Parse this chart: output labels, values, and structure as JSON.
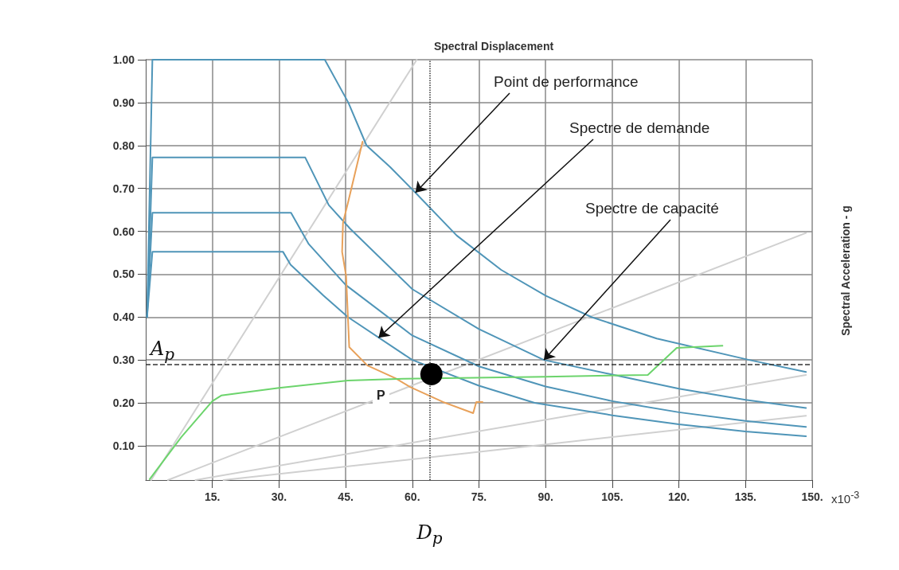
{
  "chart_data": {
    "type": "line",
    "title": "Spectral Displacement",
    "ylabel": "Spectral Acceleration - g",
    "xlim": [
      0,
      150
    ],
    "ylim": [
      0.02,
      1.0
    ],
    "xticks": [
      {
        "value": 15,
        "label": "15."
      },
      {
        "value": 30,
        "label": "30."
      },
      {
        "value": 45,
        "label": "45."
      },
      {
        "value": 60,
        "label": "60."
      },
      {
        "value": 75,
        "label": "75."
      },
      {
        "value": 90,
        "label": "90."
      },
      {
        "value": 105,
        "label": "105."
      },
      {
        "value": 120,
        "label": "120."
      },
      {
        "value": 135,
        "label": "135."
      },
      {
        "value": 150,
        "label": "150."
      }
    ],
    "yticks": [
      {
        "value": 0.1,
        "label": "0.10"
      },
      {
        "value": 0.2,
        "label": "0.20"
      },
      {
        "value": 0.3,
        "label": "0.30"
      },
      {
        "value": 0.4,
        "label": "0.40"
      },
      {
        "value": 0.5,
        "label": "0.50"
      },
      {
        "value": 0.6,
        "label": "0.60"
      },
      {
        "value": 0.7,
        "label": "0.70"
      },
      {
        "value": 0.8,
        "label": "0.80"
      },
      {
        "value": 0.9,
        "label": "0.90"
      },
      {
        "value": 1.0,
        "label": "1.00"
      }
    ],
    "grid": true,
    "marker": "none",
    "series": [
      {
        "color": "#d0d0d0",
        "x": [
          1.22,
          61
        ],
        "values": [
          0.02,
          1.0
        ]
      },
      {
        "color": "#d0d0d0",
        "x": [
          4.99,
          148.6
        ],
        "values": [
          0.02,
          0.596
        ]
      },
      {
        "color": "#d0d0d0",
        "x": [
          11.2,
          148.6
        ],
        "values": [
          0.02,
          0.265
        ]
      },
      {
        "color": "#d0d0d0",
        "x": [
          17.5,
          148.6
        ],
        "values": [
          0.02,
          0.17
        ]
      },
      {
        "color": "#4f95b8",
        "x": [
          0.3,
          1.5,
          40.3,
          45.6,
          49.7,
          55,
          60.7,
          70,
          80,
          90,
          100.3,
          115,
          135.8,
          148.6
        ],
        "values": [
          0.4,
          1.0,
          1.0,
          0.9,
          0.8,
          0.75,
          0.69,
          0.59,
          0.51,
          0.45,
          0.4,
          0.35,
          0.3,
          0.272
        ]
      },
      {
        "color": "#4f95b8",
        "x": [
          0.3,
          1.5,
          35.9,
          41.2,
          46,
          60,
          75,
          89.6,
          105,
          120,
          135,
          148.6
        ],
        "values": [
          0.4,
          0.772,
          0.772,
          0.661,
          0.606,
          0.465,
          0.372,
          0.3,
          0.266,
          0.233,
          0.207,
          0.188
        ]
      },
      {
        "color": "#4f95b8",
        "x": [
          0.3,
          1.5,
          32.7,
          36.7,
          45,
          60,
          75,
          90,
          105,
          120,
          135,
          148.6
        ],
        "values": [
          0.4,
          0.643,
          0.643,
          0.57,
          0.475,
          0.357,
          0.285,
          0.238,
          0.204,
          0.178,
          0.158,
          0.144
        ]
      },
      {
        "color": "#4f95b8",
        "x": [
          0.3,
          1.5,
          30.9,
          32.6,
          40,
          45.5,
          60,
          75,
          87.5,
          105,
          120,
          135,
          148.6
        ],
        "values": [
          0.4,
          0.552,
          0.552,
          0.522,
          0.45,
          0.4,
          0.3,
          0.24,
          0.2,
          0.171,
          0.15,
          0.133,
          0.122
        ]
      },
      {
        "color": "#e8a15a",
        "x": [
          48.8,
          45.6,
          44.4,
          44.2,
          45.1,
          45.8,
          49.9,
          56.3,
          59.5,
          66.9,
          73.7,
          74.4,
          75.8
        ],
        "values": [
          0.809,
          0.67,
          0.62,
          0.552,
          0.496,
          0.33,
          0.287,
          0.257,
          0.237,
          0.202,
          0.176,
          0.202,
          0.202
        ]
      },
      {
        "color": "#6cd46c",
        "x": [
          0.9,
          8,
          15,
          17,
          30,
          45.5,
          58,
          90,
          113,
          119.5,
          129.8
        ],
        "values": [
          0.022,
          0.12,
          0.204,
          0.217,
          0.235,
          0.252,
          0.256,
          0.261,
          0.265,
          0.328,
          0.333
        ]
      },
      {
        "type": "scatter",
        "marker": "circle",
        "color": "#000000",
        "x": [
          64.3
        ],
        "values": [
          0.267
        ]
      }
    ],
    "ref_lines": [
      {
        "axis": "y",
        "value": 0.287,
        "label": "A$_{p}$",
        "line_style": "dashed",
        "color": "#333333"
      },
      {
        "axis": "x",
        "value": 63.9,
        "label": "D$_{p}$",
        "line_style": "dotted",
        "color": "#333333"
      }
    ],
    "annotations": [
      {
        "text": "Point de performance",
        "x": 60.7,
        "y": 0.69
      },
      {
        "text": "Spectre de demande",
        "x": 52.4,
        "y": 0.352
      },
      {
        "text": "Spectre de capacité",
        "x": 89.6,
        "y": 0.3
      },
      "P",
      "x10$^{-3}$"
    ]
  }
}
